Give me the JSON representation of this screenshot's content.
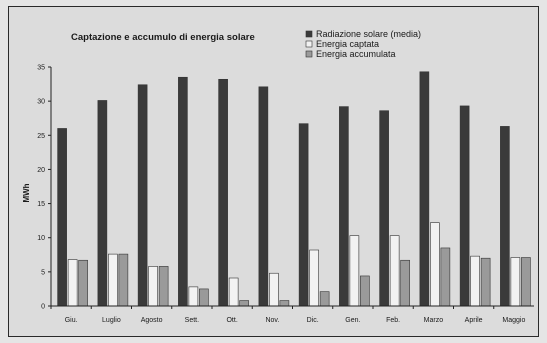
{
  "chart_data": {
    "type": "bar",
    "title": "Captazione e accumulo di energia solare",
    "ylabel": "MWh",
    "xlabel": "",
    "ylim": [
      0,
      35
    ],
    "yticks": [
      0,
      5,
      10,
      15,
      20,
      25,
      30,
      35
    ],
    "grid": false,
    "legend_position": "top-right",
    "categories": [
      "Giu.",
      "Luglio",
      "Agosto",
      "Sett.",
      "Ott.",
      "Nov.",
      "Dic.",
      "Gen.",
      "Feb.",
      "Marzo",
      "Aprile",
      "Maggio"
    ],
    "series": [
      {
        "name": "Radiazione solare (media)",
        "color": "#3a3a3a",
        "values": [
          26,
          30.1,
          32.4,
          33.5,
          33.2,
          32.1,
          26.7,
          29.2,
          28.6,
          34.3,
          29.3,
          26.3
        ]
      },
      {
        "name": "Energia captata",
        "color": "#f2f2f2",
        "values": [
          6.8,
          7.6,
          5.8,
          2.8,
          4.1,
          4.8,
          8.2,
          10.3,
          10.3,
          12.2,
          7.3,
          7.1
        ]
      },
      {
        "name": "Energia accumulata",
        "color": "#9a9a9a",
        "values": [
          6.7,
          7.6,
          5.8,
          2.5,
          0.8,
          0.8,
          2.1,
          4.4,
          6.7,
          8.5,
          7,
          7.1
        ]
      }
    ]
  }
}
